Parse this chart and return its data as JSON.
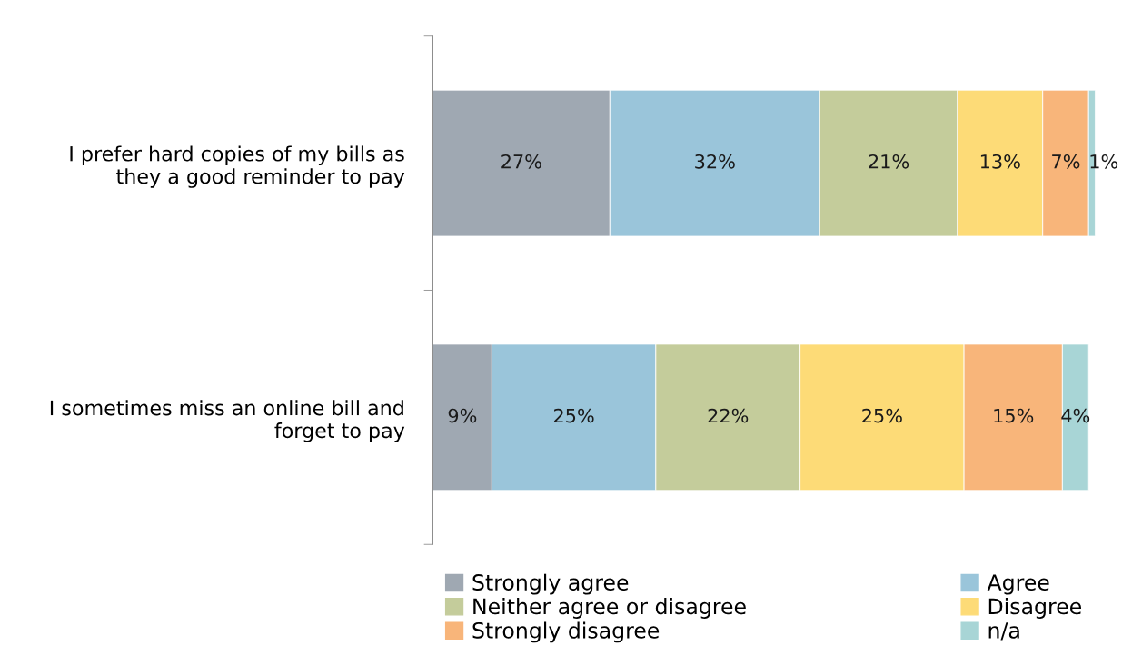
{
  "chart_data": {
    "type": "bar",
    "orientation": "horizontal",
    "stacked": true,
    "legend": "bottom",
    "grid": false,
    "categories": [
      "I prefer hard copies of my bills as\nthey a good reminder to pay",
      "I sometimes miss an online bill and\nforget to pay"
    ],
    "series": [
      {
        "name": "Strongly agree",
        "color": "#9fa8b2",
        "values": [
          27,
          9
        ],
        "value_labels": [
          "27%",
          "9%"
        ]
      },
      {
        "name": "Agree",
        "color": "#9ac5da",
        "values": [
          32,
          25
        ],
        "value_labels": [
          "32%",
          "25%"
        ]
      },
      {
        "name": "Neither agree or disagree",
        "color": "#c4cc9b",
        "values": [
          21,
          22
        ],
        "value_labels": [
          "21%",
          "22%"
        ]
      },
      {
        "name": "Disagree",
        "color": "#fddb77",
        "values": [
          13,
          25
        ],
        "value_labels": [
          "13%",
          "25%"
        ]
      },
      {
        "name": "Strongly disagree",
        "color": "#f8b57a",
        "values": [
          7,
          15
        ],
        "value_labels": [
          "7%",
          "15%"
        ]
      },
      {
        "name": "n/a",
        "color": "#a8d5d6",
        "values": [
          1,
          4
        ],
        "value_labels": [
          "1%",
          "4%"
        ]
      }
    ]
  }
}
